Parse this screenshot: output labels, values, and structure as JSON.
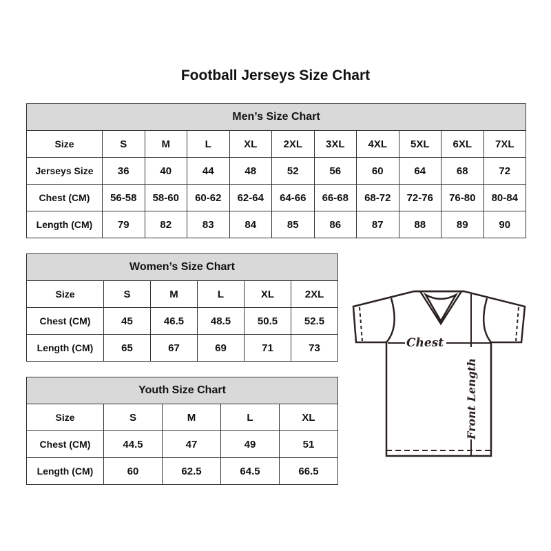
{
  "title": "Football Jerseys Size Chart",
  "men": {
    "caption": "Men’s Size Chart",
    "rows": [
      {
        "label": "Size",
        "cells": [
          "S",
          "M",
          "L",
          "XL",
          "2XL",
          "3XL",
          "4XL",
          "5XL",
          "6XL",
          "7XL"
        ]
      },
      {
        "label": "Jerseys Size",
        "cells": [
          "36",
          "40",
          "44",
          "48",
          "52",
          "56",
          "60",
          "64",
          "68",
          "72"
        ]
      },
      {
        "label": "Chest (CM)",
        "cells": [
          "56-58",
          "58-60",
          "60-62",
          "62-64",
          "64-66",
          "66-68",
          "68-72",
          "72-76",
          "76-80",
          "80-84"
        ]
      },
      {
        "label": "Length (CM)",
        "cells": [
          "79",
          "82",
          "83",
          "84",
          "85",
          "86",
          "87",
          "88",
          "89",
          "90"
        ]
      }
    ]
  },
  "women": {
    "caption": "Women’s Size Chart",
    "rows": [
      {
        "label": "Size",
        "cells": [
          "S",
          "M",
          "L",
          "XL",
          "2XL"
        ]
      },
      {
        "label": "Chest (CM)",
        "cells": [
          "45",
          "46.5",
          "48.5",
          "50.5",
          "52.5"
        ]
      },
      {
        "label": "Length (CM)",
        "cells": [
          "65",
          "67",
          "69",
          "71",
          "73"
        ]
      }
    ]
  },
  "youth": {
    "caption": "Youth Size Chart",
    "rows": [
      {
        "label": "Size",
        "cells": [
          "S",
          "M",
          "L",
          "XL"
        ]
      },
      {
        "label": "Chest (CM)",
        "cells": [
          "44.5",
          "47",
          "49",
          "51"
        ]
      },
      {
        "label": "Length (CM)",
        "cells": [
          "60",
          "62.5",
          "64.5",
          "66.5"
        ]
      }
    ]
  },
  "diagram": {
    "chest_label": "Chest",
    "length_label": "Front Length"
  },
  "colors": {
    "header_bg": "#d9d9d9",
    "border": "#333333"
  }
}
